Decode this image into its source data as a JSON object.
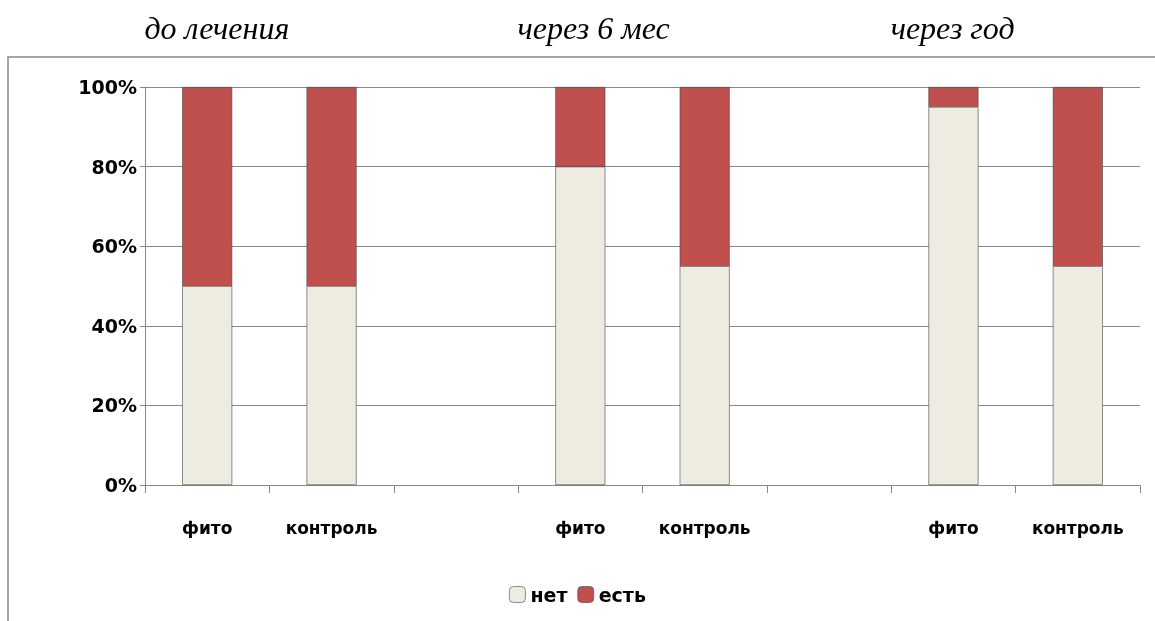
{
  "chart_data": {
    "type": "bar",
    "stacked": true,
    "categories": [
      "фито",
      "контроль",
      null,
      "фито",
      "контроль",
      null,
      "фито",
      "контроль"
    ],
    "series": [
      {
        "name": "нет",
        "color": "#eeece1",
        "values": [
          50,
          50,
          null,
          80,
          55,
          null,
          95,
          55
        ]
      },
      {
        "name": "есть",
        "color": "#c0504d",
        "values": [
          50,
          50,
          null,
          20,
          45,
          null,
          5,
          45
        ]
      }
    ],
    "ylim": [
      0,
      100
    ],
    "yticks": [
      {
        "value": 0,
        "label": "0%"
      },
      {
        "value": 20,
        "label": "20%"
      },
      {
        "value": 40,
        "label": "40%"
      },
      {
        "value": 60,
        "label": "60%"
      },
      {
        "value": 80,
        "label": "80%"
      },
      {
        "value": 100,
        "label": "100%"
      }
    ],
    "grid": "y",
    "legend": "bottom",
    "annotations": [
      "до лечения",
      "через 6 мес",
      "через год"
    ]
  }
}
